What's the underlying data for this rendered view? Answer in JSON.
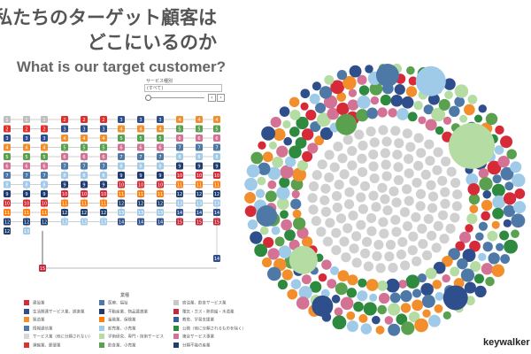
{
  "title": {
    "ja_line1": "私たちのターゲット顧客は",
    "ja_line2": "どこにいるのか",
    "en": "What is our target customer?"
  },
  "filter": {
    "label": "サービス種別",
    "selected": "(すべて)",
    "prev": "‹",
    "next": "›"
  },
  "legend": {
    "title": "業種",
    "items": [
      {
        "label": "建設業",
        "color": "#d62a39"
      },
      {
        "label": "生活関連サービス業、娯楽業",
        "color": "#2f4e8c"
      },
      {
        "label": "製造業",
        "color": "#f28e2b"
      },
      {
        "label": "情報通信業",
        "color": "#4e79a7"
      },
      {
        "label": "サービス業（他に分類されない）",
        "color": "#d7d7d7"
      },
      {
        "label": "運輸業、郵便業",
        "color": "#e0302b"
      },
      {
        "label": "医療、福祉",
        "color": "#4e79a7"
      },
      {
        "label": "不動産業、物品賃貸業",
        "color": "#1f3b73"
      },
      {
        "label": "金融業、保険業",
        "color": "#ff7f0e"
      },
      {
        "label": "卸売業、小売業",
        "color": "#a0cbe8"
      },
      {
        "label": "学術研究、専門・技術サービス",
        "color": "#b5dca2"
      },
      {
        "label": "飲食業、小売業",
        "color": "#59a14f"
      },
      {
        "label": "宿泊業、飲食サービス業",
        "color": "#c8c8c8"
      },
      {
        "label": "電気・ガス・熱供給・水道業",
        "color": "#c5283d"
      },
      {
        "label": "教育、学習支援業",
        "color": "#3b5a9a"
      },
      {
        "label": "公務（他に分類されるものを除く）",
        "color": "#2d8a3e"
      },
      {
        "label": "複合サービス事業",
        "color": "#d37295"
      },
      {
        "label": "分類不能の産業",
        "color": "#1f3e6e"
      }
    ]
  },
  "network": {
    "rows": [
      {
        "label": "1",
        "color": "#bfbfbf"
      },
      {
        "label": "2",
        "color": "#e0302b"
      },
      {
        "label": "3",
        "color": "#2f4e8c"
      },
      {
        "label": "4",
        "color": "#f28e2b"
      },
      {
        "label": "5",
        "color": "#59a14f"
      },
      {
        "label": "6",
        "color": "#d37295"
      },
      {
        "label": "7",
        "color": "#4e79a7"
      },
      {
        "label": "8",
        "color": "#a0cbe8"
      },
      {
        "label": "9",
        "color": "#1f3b73"
      },
      {
        "label": "10",
        "color": "#d62a39"
      },
      {
        "label": "11",
        "color": "#ff7f0e"
      },
      {
        "label": "12",
        "color": "#1f3e6e"
      },
      {
        "label": "13",
        "color": "#a0cbe8"
      },
      {
        "label": "14",
        "color": "#2f4e8c"
      },
      {
        "label": "15",
        "color": "#c5283d"
      }
    ]
  },
  "bubble_colors": [
    "#4e79a7",
    "#2f4e8c",
    "#f28e2b",
    "#d37295",
    "#b5dca2",
    "#59a14f",
    "#a0cbe8",
    "#d62a39",
    "#2d8a3e",
    "#c8c8c8"
  ],
  "brand": "keywalker"
}
